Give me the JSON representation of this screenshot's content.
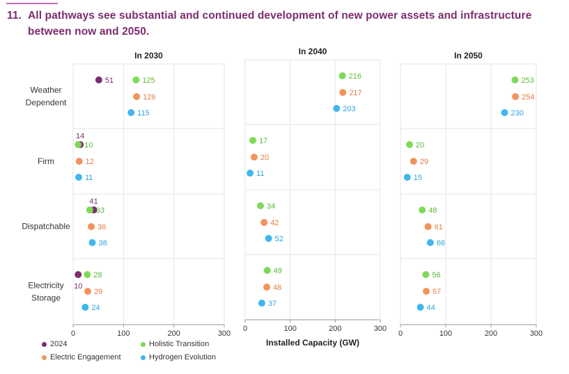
{
  "title": {
    "number": "11.",
    "line1": "All pathways see substantial and continued development of new power assets and infrastructure",
    "line2": "between now and 2050."
  },
  "colors": {
    "2024": "#7b2d6e",
    "Holistic Transition": "#7ed957",
    "Electric Engagement": "#f0945c",
    "Hydrogen Evolution": "#3fb6ee"
  },
  "chart_data": {
    "type": "scatter",
    "xlabel": "Installed Capacity (GW)",
    "xlim": [
      0,
      300
    ],
    "x_ticks": [
      0,
      100,
      200,
      300
    ],
    "grid": true,
    "legend_position": "bottom-left",
    "categories": [
      "Weather Dependent",
      "Firm",
      "Dispatchable",
      "Electricity Storage"
    ],
    "category_labels": [
      [
        "Weather",
        "Dependent"
      ],
      [
        "Firm"
      ],
      [
        "Dispatchable"
      ],
      [
        "Electricity",
        "Storage"
      ]
    ],
    "series_order": [
      "2024",
      "Holistic Transition",
      "Electric Engagement",
      "Hydrogen Evolution"
    ],
    "panels": [
      {
        "title": "In 2030",
        "values": {
          "2024": [
            51,
            14,
            41,
            10
          ],
          "Holistic Transition": [
            125,
            10,
            33,
            28
          ],
          "Electric Engagement": [
            126,
            12,
            36,
            29
          ],
          "Hydrogen Evolution": [
            115,
            11,
            38,
            24
          ]
        }
      },
      {
        "title": "In 2040",
        "values": {
          "Holistic Transition": [
            216,
            17,
            34,
            49
          ],
          "Electric Engagement": [
            217,
            20,
            42,
            48
          ],
          "Hydrogen Evolution": [
            203,
            11,
            52,
            37
          ]
        }
      },
      {
        "title": "In 2050",
        "values": {
          "Holistic Transition": [
            253,
            20,
            48,
            56
          ],
          "Electric Engagement": [
            254,
            29,
            61,
            57
          ],
          "Hydrogen Evolution": [
            230,
            15,
            66,
            44
          ]
        }
      }
    ]
  }
}
